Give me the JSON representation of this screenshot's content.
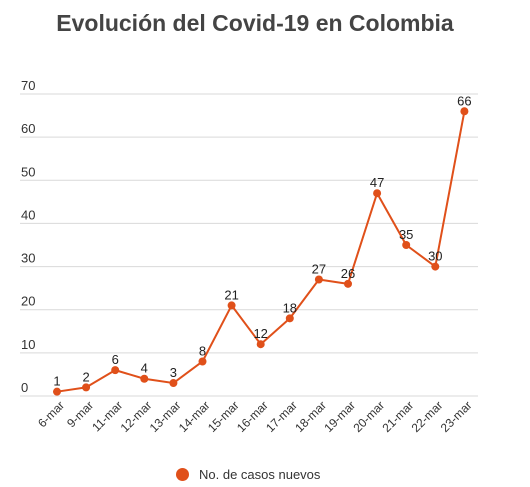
{
  "chart_data": {
    "type": "line",
    "title": "Evolución del Covid-19 en Colombia",
    "categories": [
      "6-mar",
      "9-mar",
      "11-mar",
      "12-mar",
      "13-mar",
      "14-mar",
      "15-mar",
      "16-mar",
      "17-mar",
      "18-mar",
      "19-mar",
      "20-mar",
      "21-mar",
      "22-mar",
      "23-mar"
    ],
    "series": [
      {
        "name": "No. de casos nuevos",
        "values": [
          1,
          2,
          6,
          4,
          3,
          8,
          21,
          12,
          18,
          27,
          26,
          47,
          35,
          30,
          66
        ]
      }
    ],
    "ylim": [
      0,
      70
    ],
    "yticks": [
      0,
      10,
      20,
      30,
      40,
      50,
      60,
      70
    ],
    "xlabel": "",
    "ylabel": "",
    "grid": true,
    "legend": "bottom",
    "data_labels": true
  },
  "colors": {
    "series": "#e0501a",
    "grid": "#d9d9d9",
    "text": "#333333",
    "title": "#444444"
  }
}
